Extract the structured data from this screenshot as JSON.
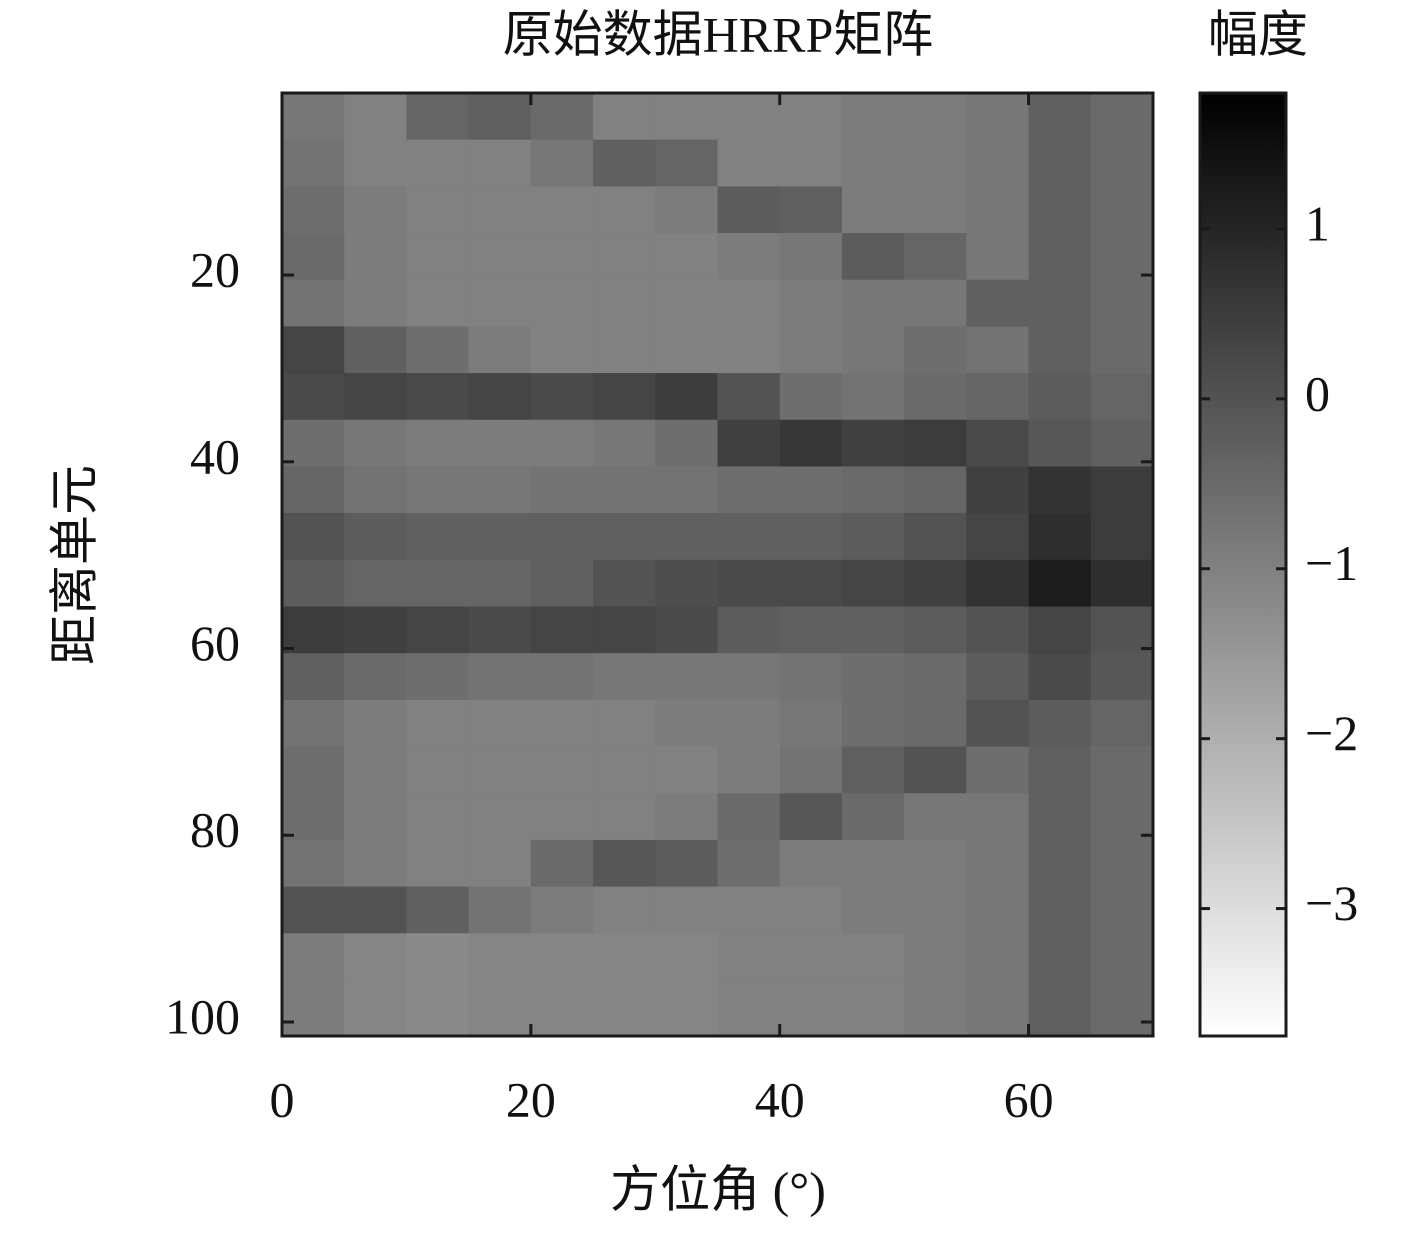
{
  "chart_data": {
    "type": "heatmap",
    "title": "原始数据HRRP矩阵",
    "xlabel": "方位角 (°)",
    "ylabel": "距离单元",
    "colorbar_label": "幅度",
    "colormap": "gray_r",
    "xlim": [
      0,
      70
    ],
    "xticks": [
      0,
      20,
      40,
      60
    ],
    "ylim": [
      0.5,
      101.5
    ],
    "yticks": [
      20,
      40,
      60,
      80,
      100
    ],
    "y_reversed": true,
    "clim": [
      -3.75,
      1.8
    ],
    "cticks": [
      {
        "value": -3,
        "label": "−3"
      },
      {
        "value": -2,
        "label": "−2"
      },
      {
        "value": -1,
        "label": "−1"
      },
      0,
      1
    ],
    "xbins": [
      0,
      5,
      10,
      15,
      20,
      25,
      30,
      35,
      40,
      45,
      50,
      55,
      60,
      65,
      70
    ],
    "ybins": [
      0.5,
      5.5,
      10.5,
      15.5,
      20.5,
      25.5,
      30.5,
      35.5,
      40.5,
      45.5,
      50.5,
      55.5,
      60.5,
      65.5,
      70.5,
      75.5,
      80.5,
      85.5,
      90.5,
      95.5,
      101.5
    ],
    "values": [
      [
        -0.8,
        -1.0,
        -0.4,
        -0.3,
        -0.5,
        -1.0,
        -1.0,
        -1.0,
        -1.0,
        -0.9,
        -0.9,
        -0.8,
        -0.3,
        -0.5
      ],
      [
        -0.7,
        -1.0,
        -1.0,
        -1.0,
        -0.8,
        -0.3,
        -0.4,
        -1.0,
        -1.0,
        -0.9,
        -0.9,
        -0.8,
        -0.3,
        -0.5
      ],
      [
        -0.6,
        -0.9,
        -1.0,
        -1.0,
        -1.0,
        -1.0,
        -0.9,
        -0.2,
        -0.3,
        -0.9,
        -0.9,
        -0.8,
        -0.3,
        -0.5
      ],
      [
        -0.5,
        -0.9,
        -1.0,
        -1.0,
        -1.0,
        -1.0,
        -1.0,
        -0.9,
        -0.8,
        -0.2,
        -0.4,
        -0.8,
        -0.3,
        -0.5
      ],
      [
        -0.7,
        -0.9,
        -1.0,
        -1.0,
        -1.0,
        -1.0,
        -1.0,
        -1.0,
        -0.9,
        -0.8,
        -0.8,
        -0.3,
        -0.3,
        -0.5
      ],
      [
        0.3,
        -0.3,
        -0.6,
        -0.9,
        -1.0,
        -1.0,
        -1.0,
        -1.0,
        -0.9,
        -0.8,
        -0.6,
        -0.7,
        -0.3,
        -0.5
      ],
      [
        0.2,
        0.3,
        0.2,
        0.3,
        0.2,
        0.3,
        0.5,
        0.0,
        -0.6,
        -0.7,
        -0.5,
        -0.4,
        -0.2,
        -0.4
      ],
      [
        -0.6,
        -0.8,
        -0.9,
        -0.9,
        -0.9,
        -0.8,
        -0.6,
        0.4,
        0.6,
        0.4,
        0.5,
        0.2,
        -0.1,
        -0.3
      ],
      [
        -0.4,
        -0.7,
        -0.8,
        -0.8,
        -0.7,
        -0.7,
        -0.7,
        -0.6,
        -0.6,
        -0.5,
        -0.4,
        0.4,
        0.7,
        0.5
      ],
      [
        0.0,
        -0.2,
        -0.3,
        -0.3,
        -0.3,
        -0.3,
        -0.3,
        -0.3,
        -0.3,
        -0.2,
        0.0,
        0.3,
        0.8,
        0.5
      ],
      [
        -0.2,
        -0.4,
        -0.4,
        -0.4,
        -0.3,
        0.0,
        0.1,
        0.2,
        0.2,
        0.3,
        0.4,
        0.7,
        1.2,
        0.8
      ],
      [
        0.5,
        0.4,
        0.3,
        0.2,
        0.3,
        0.3,
        0.2,
        -0.2,
        -0.3,
        -0.3,
        -0.2,
        0.0,
        0.3,
        0.0
      ],
      [
        -0.3,
        -0.5,
        -0.6,
        -0.7,
        -0.7,
        -0.8,
        -0.8,
        -0.8,
        -0.7,
        -0.6,
        -0.5,
        -0.2,
        0.2,
        -0.1
      ],
      [
        -0.7,
        -0.9,
        -1.0,
        -1.0,
        -1.0,
        -1.0,
        -0.9,
        -0.9,
        -0.8,
        -0.6,
        -0.5,
        0.0,
        -0.2,
        -0.4
      ],
      [
        -0.6,
        -0.9,
        -1.0,
        -1.0,
        -1.0,
        -1.0,
        -1.0,
        -0.9,
        -0.7,
        -0.3,
        0.0,
        -0.6,
        -0.3,
        -0.5
      ],
      [
        -0.6,
        -0.9,
        -1.0,
        -1.0,
        -1.0,
        -1.0,
        -0.9,
        -0.5,
        -0.1,
        -0.5,
        -0.8,
        -0.8,
        -0.3,
        -0.5
      ],
      [
        -0.7,
        -0.9,
        -1.0,
        -1.0,
        -0.5,
        -0.1,
        -0.2,
        -0.6,
        -0.9,
        -0.9,
        -0.9,
        -0.8,
        -0.3,
        -0.5
      ],
      [
        0.0,
        0.0,
        -0.3,
        -0.7,
        -0.9,
        -1.0,
        -1.0,
        -1.0,
        -1.0,
        -0.9,
        -0.9,
        -0.8,
        -0.3,
        -0.5
      ],
      [
        -0.9,
        -1.1,
        -1.2,
        -1.1,
        -1.1,
        -1.1,
        -1.1,
        -1.0,
        -1.0,
        -1.0,
        -0.9,
        -0.8,
        -0.3,
        -0.5
      ],
      [
        -0.9,
        -1.1,
        -1.2,
        -1.1,
        -1.1,
        -1.1,
        -1.1,
        -1.0,
        -1.0,
        -1.0,
        -0.9,
        -0.8,
        -0.3,
        -0.5
      ]
    ]
  }
}
